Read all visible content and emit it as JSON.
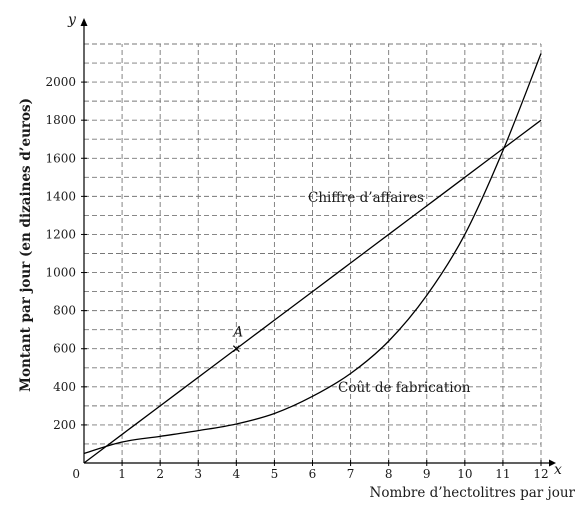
{
  "chart_data": {
    "type": "line",
    "x": [
      0,
      1,
      2,
      3,
      4,
      5,
      6,
      7,
      8,
      9,
      10,
      11,
      12
    ],
    "series": [
      {
        "name": "Chiffre d’affaires",
        "values": [
          0,
          150,
          300,
          450,
          600,
          750,
          900,
          1050,
          1200,
          1350,
          1500,
          1650,
          1800
        ]
      },
      {
        "name": "Coût de fabrication",
        "values": [
          50,
          110,
          140,
          170,
          205,
          260,
          350,
          470,
          640,
          880,
          1200,
          1640,
          2150
        ]
      }
    ],
    "points": [
      {
        "name": "A",
        "x": 4,
        "y": 600
      }
    ],
    "xlim": [
      0,
      12
    ],
    "ylim": [
      0,
      2200
    ],
    "xticks": [
      "1",
      "2",
      "3",
      "4",
      "5",
      "6",
      "7",
      "8",
      "9",
      "10",
      "11",
      "12"
    ],
    "yticks": [
      "200",
      "400",
      "600",
      "800",
      "1000",
      "1200",
      "1400",
      "1600",
      "1800",
      "2000"
    ],
    "x_axis_letter": "x",
    "y_axis_letter": "y",
    "xlabel": "Nombre d’hectolitres par jour",
    "ylabel": "Montant par jour (en dizaines d’euros)",
    "origin_label": "0",
    "grid": true,
    "legend": "none"
  }
}
